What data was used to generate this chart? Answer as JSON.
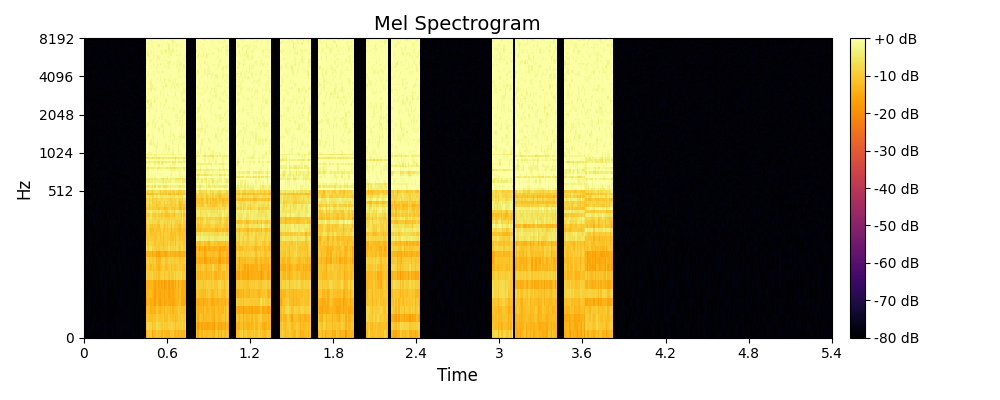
{
  "title": "Mel Spectrogram",
  "xlabel": "Time",
  "ylabel": "Hz",
  "time_max": 5.4,
  "sample_rate": 16384,
  "n_mels": 128,
  "n_frames": 540,
  "vmin": -80,
  "vmax": 0,
  "colorbar_ticks": [
    0,
    -10,
    -20,
    -30,
    -40,
    -50,
    -60,
    -70,
    -80
  ],
  "colorbar_labels": [
    "+0 dB",
    "-10 dB",
    "-20 dB",
    "-30 dB",
    "-40 dB",
    "-50 dB",
    "-60 dB",
    "-70 dB",
    "-80 dB"
  ],
  "xticks": [
    0,
    0.6,
    1.2,
    1.8,
    2.4,
    3.0,
    3.6,
    4.2,
    4.8,
    5.4
  ],
  "yticks": [
    0,
    512,
    1024,
    2048,
    4096,
    8192
  ],
  "cmap": "inferno",
  "active_segments": [
    {
      "t_start": 0.45,
      "t_end": 0.75
    },
    {
      "t_start": 0.82,
      "t_end": 1.05
    },
    {
      "t_start": 1.1,
      "t_end": 1.35
    },
    {
      "t_start": 1.42,
      "t_end": 1.65
    },
    {
      "t_start": 1.7,
      "t_end": 1.95
    },
    {
      "t_start": 2.05,
      "t_end": 2.2
    },
    {
      "t_start": 2.23,
      "t_end": 2.43
    },
    {
      "t_start": 2.95,
      "t_end": 3.1
    },
    {
      "t_start": 3.12,
      "t_end": 3.42
    },
    {
      "t_start": 3.47,
      "t_end": 3.62
    },
    {
      "t_start": 3.63,
      "t_end": 3.82
    }
  ],
  "title_fontsize": 14,
  "label_fontsize": 12
}
